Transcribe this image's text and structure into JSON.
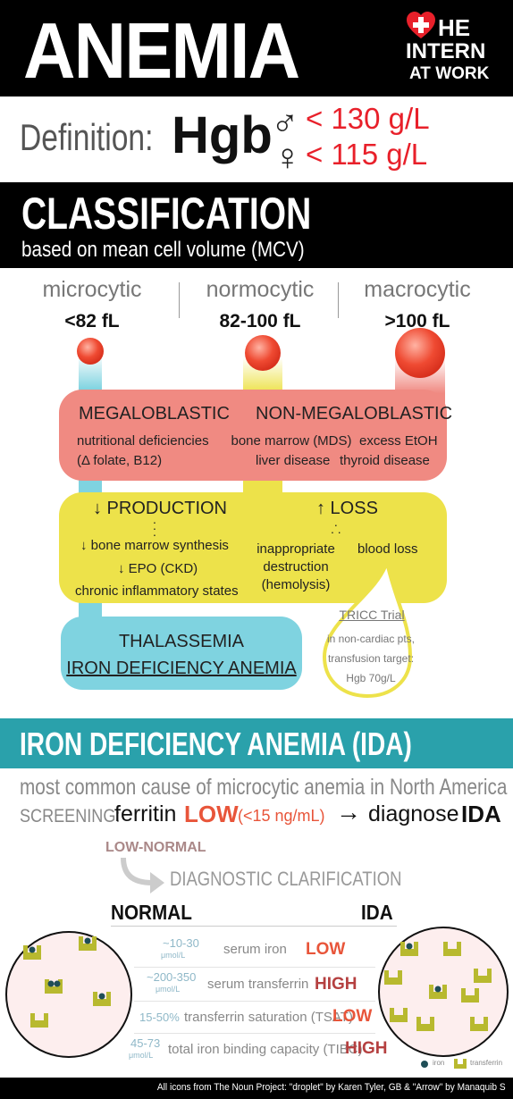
{
  "title": "ANEMIA",
  "logo": {
    "line1": "HE",
    "line2": "INTERN",
    "line3": "AT WORK"
  },
  "definition": {
    "label": "Definition:",
    "analyte": "Hgb",
    "male_value": "< 130 g/L",
    "female_value": "< 115 g/L"
  },
  "classification": {
    "heading": "CLASSIFICATION",
    "subheading": "based on mean cell volume (MCV)",
    "columns": [
      {
        "name": "microcytic",
        "range": "<82 fL",
        "color": "#7fd3e0"
      },
      {
        "name": "normocytic",
        "range": "82-100 fL",
        "color": "#ede24a"
      },
      {
        "name": "macrocytic",
        "range": ">100 fL",
        "color": "#f08a82"
      }
    ],
    "macro_box": {
      "megaloblastic": "MEGALOBLASTIC",
      "meg_line1": "nutritional deficiencies",
      "meg_line2": "(Δ folate, B12)",
      "nonmeg": "NON-MEGALOBLASTIC",
      "nonmeg_a1": "bone marrow (MDS)",
      "nonmeg_a2": "liver disease",
      "nonmeg_b1": "excess EtOH",
      "nonmeg_b2": "thyroid disease"
    },
    "normo_box": {
      "production": "↓ PRODUCTION",
      "prod_1": "↓ bone marrow synthesis",
      "prod_2": "↓ EPO (CKD)",
      "prod_3": "chronic inflammatory states",
      "loss": "↑ LOSS",
      "loss_a1": "inappropriate",
      "loss_a2": "destruction",
      "loss_a3": "(hemolysis)",
      "loss_b": "blood loss"
    },
    "micro_box": {
      "line1": "THALASSEMIA",
      "line2": "IRON DEFICIENCY ANEMIA"
    },
    "tricc": {
      "title": "TRICC Trial",
      "line1": "in non-cardiac pts,",
      "line2": "transfusion target:",
      "line3": "Hgb 70g/L"
    }
  },
  "ida": {
    "heading": "IRON DEFICIENCY ANEMIA (IDA)",
    "common": "most common cause of microcytic anemia in North America",
    "screening_label": "SCREENING:",
    "ferritin": "ferritin",
    "low": "LOW",
    "threshold": "(<15 ng/mL)",
    "arrow": "→",
    "diagnose": "diagnose",
    "ida_word": "IDA",
    "low_normal": "LOW-NORMAL",
    "clarification": "DIAGNOSTIC CLARIFICATION",
    "normal_label": "NORMAL",
    "ida_label": "IDA",
    "rows": [
      {
        "range": "~10-30",
        "unit": "μmol/L",
        "name": "serum iron",
        "result": "LOW"
      },
      {
        "range": "~200-350",
        "unit": "μmol/L",
        "name": "serum transferrin",
        "result": "HIGH"
      },
      {
        "range": "15-50%",
        "unit": "",
        "name": "transferrin saturation (TSAT)",
        "result": "LOW"
      },
      {
        "range": "45-73",
        "unit": "μmol/L",
        "name": "total iron binding capacity (TIBC)",
        "result": "HIGH"
      }
    ],
    "legend_iron": "iron",
    "legend_transferrin": "transferrin"
  },
  "footer": "All icons from The Noun Project: \"droplet\" by Karen Tyler, GB & \"Arrow\" by Manaquib S"
}
